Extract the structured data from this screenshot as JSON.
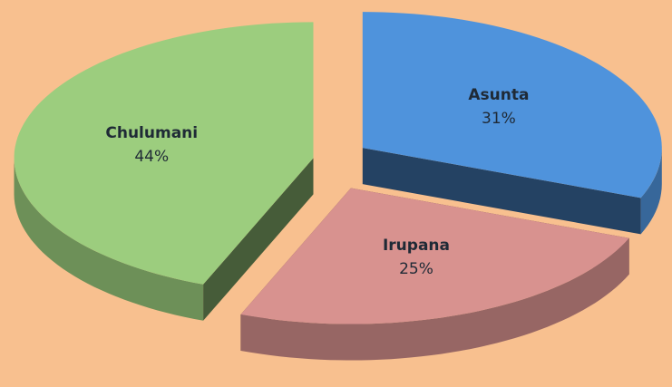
{
  "chart_data": {
    "type": "pie",
    "categories": [
      "Asunta",
      "Irupana",
      "Chulumani"
    ],
    "values": [
      31,
      25,
      44
    ],
    "value_labels": [
      "31%",
      "25%",
      "44%"
    ],
    "colors": [
      "#4f93dc",
      "#d8928f",
      "#9ccd7e"
    ]
  }
}
